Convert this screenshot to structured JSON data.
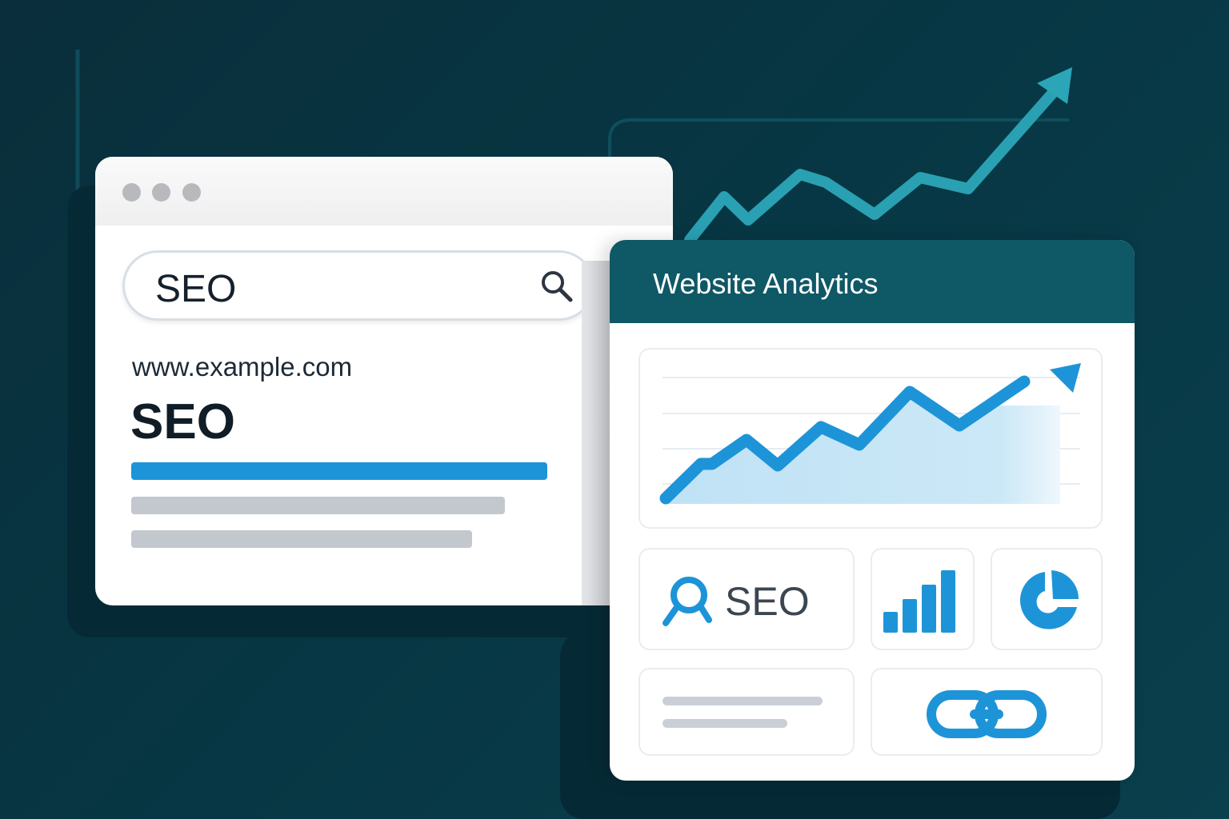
{
  "browser": {
    "search": {
      "value": "SEO",
      "icon": "search-icon"
    },
    "result": {
      "url": "www.example.com",
      "title": "SEO"
    },
    "window_controls": [
      "dot",
      "dot",
      "dot"
    ]
  },
  "analytics": {
    "title": "Website Analytics",
    "seo_card_label": "SEO",
    "icons": [
      "search-icon",
      "bar-chart-icon",
      "pie-chart-icon",
      "link-icon"
    ]
  },
  "colors": {
    "accent": "#1e94d8",
    "header": "#0f5866",
    "background": "#073744",
    "trend": "#2aa6b8"
  }
}
